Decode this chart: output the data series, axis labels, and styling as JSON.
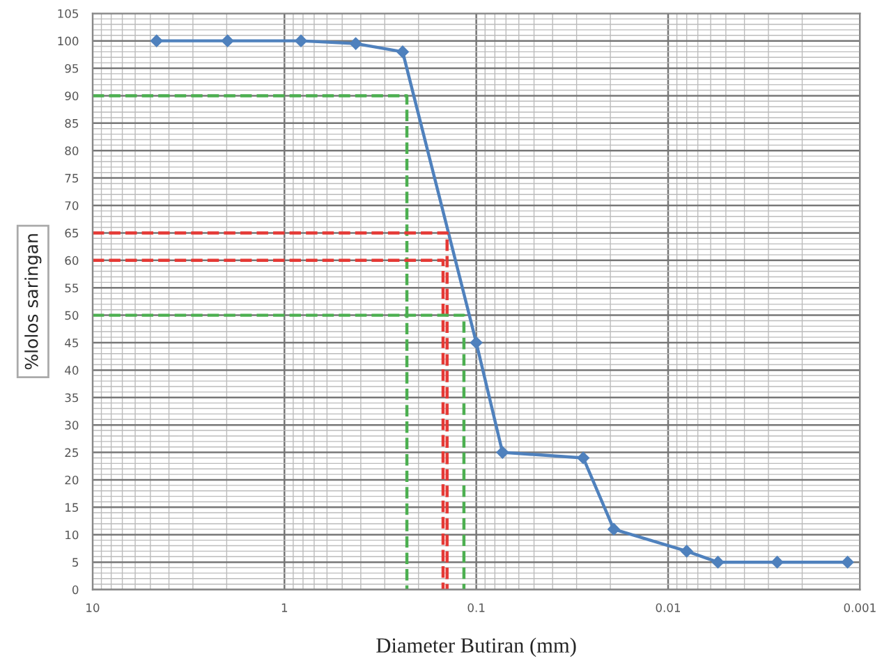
{
  "chart_data": {
    "type": "line",
    "xlabel": "Diameter Butiran (mm)",
    "ylabel": "%lolos saringan",
    "log": "x",
    "grid": true,
    "marker": "diamond",
    "line_style": "solid",
    "xlim": [
      10,
      0.001
    ],
    "xticks": [
      {
        "value": 10,
        "label": "10"
      },
      {
        "value": 1,
        "label": "1"
      },
      {
        "value": 0.1,
        "label": "0.1"
      },
      {
        "value": 0.01,
        "label": "0.01"
      },
      {
        "value": 0.001,
        "label": "0.001"
      }
    ],
    "ylim": [
      0,
      105
    ],
    "yticks": [
      0,
      5,
      10,
      15,
      20,
      25,
      30,
      35,
      40,
      45,
      50,
      55,
      60,
      65,
      70,
      75,
      80,
      85,
      90,
      95,
      100,
      105
    ],
    "series": [
      {
        "color": "#4f81bd",
        "x": [
          4.64,
          1.98,
          0.82,
          0.425,
          0.242,
          0.1,
          0.073,
          0.0277,
          0.0192,
          0.008,
          0.0055,
          0.0027,
          0.00116
        ],
        "values": [
          100,
          100,
          100,
          99.5,
          98,
          45,
          25,
          24,
          11,
          7,
          5,
          5,
          5
        ]
      },
      {
        "type": "line",
        "line_style": "dashed",
        "marker": "none",
        "color": "#4caf50",
        "x": [
          10,
          0.23,
          0.23
        ],
        "values": [
          90,
          90,
          0
        ]
      },
      {
        "type": "line",
        "line_style": "dashed",
        "marker": "none",
        "color": "#e53935",
        "x": [
          10,
          0.142,
          0.142
        ],
        "values": [
          65,
          65,
          0
        ]
      },
      {
        "type": "line",
        "line_style": "dashed",
        "marker": "none",
        "color": "#e53935",
        "x": [
          10,
          0.149,
          0.149
        ],
        "values": [
          60,
          60,
          0
        ]
      },
      {
        "type": "line",
        "line_style": "dashed",
        "marker": "none",
        "color": "#4caf50",
        "x": [
          10,
          0.116,
          0.116
        ],
        "values": [
          50,
          50,
          0
        ]
      }
    ]
  }
}
